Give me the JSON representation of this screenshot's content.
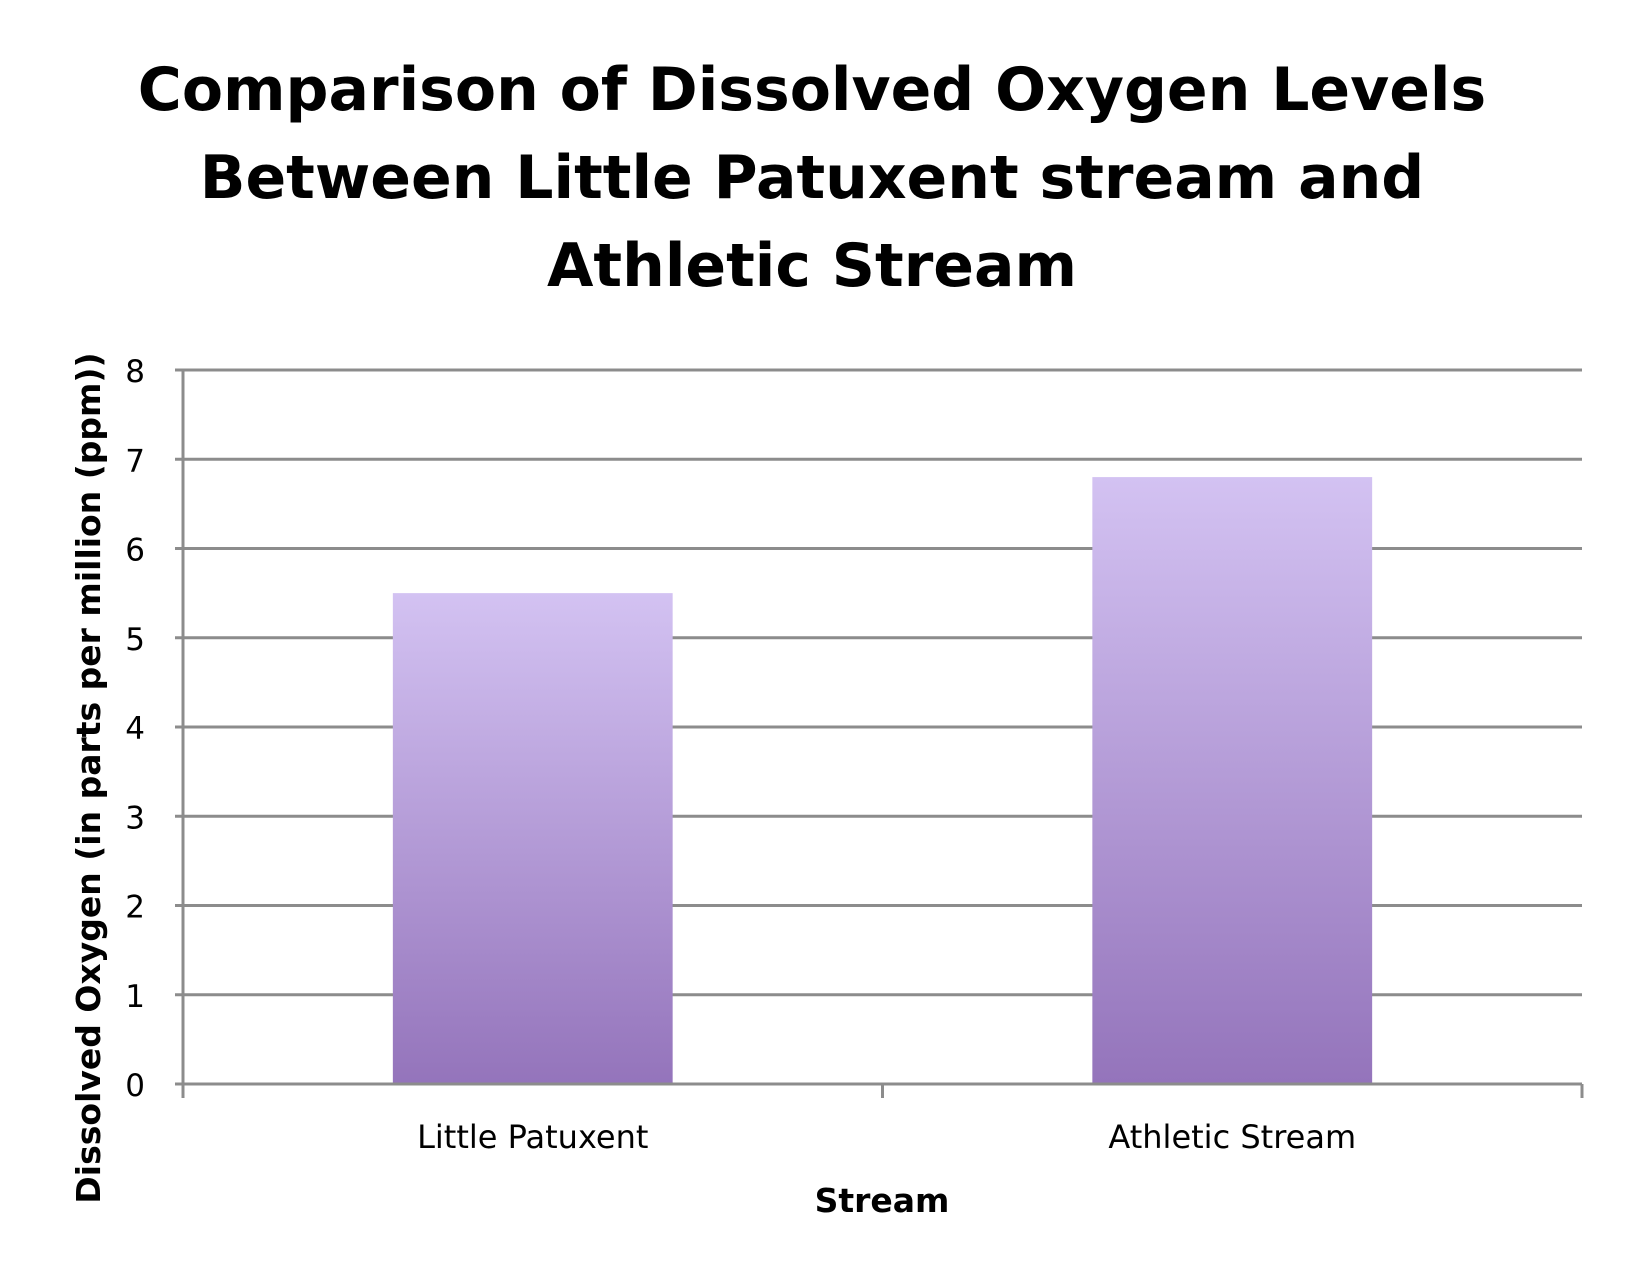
{
  "chart_data": {
    "type": "bar",
    "title_lines": [
      "Comparison of Dissolved Oxygen Levels",
      "Between Little Patuxent stream and",
      "Athletic Stream"
    ],
    "categories": [
      "Little Patuxent",
      "Athletic Stream"
    ],
    "values": [
      5.5,
      6.8
    ],
    "xlabel": "Stream",
    "ylabel": "Dissolved Oxygen (in parts per million (ppm))",
    "ylim": [
      0,
      8
    ],
    "yticks": [
      "0",
      "1",
      "2",
      "3",
      "4",
      "5",
      "6",
      "7",
      "8"
    ],
    "grid": true,
    "legend": "none",
    "colors": {
      "bar_top": "#d3c2f2",
      "bar_bottom": "#9474bb",
      "grid": "#8c8c8c",
      "axis": "#8c8c8c"
    }
  }
}
